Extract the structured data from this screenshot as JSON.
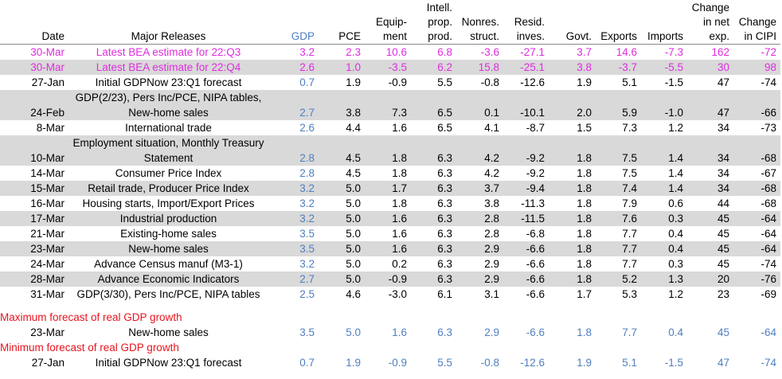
{
  "headers": [
    "Date",
    "Major Releases",
    "GDP",
    "PCE",
    "Equip-\nment",
    "Intell.\nprop.\nprod.",
    "Nonres.\nstruct.",
    "Resid.\ninves.",
    "Govt.",
    "Exports",
    "Imports",
    "Change\nin net\nexp.",
    "Change\nin CIPI"
  ],
  "colors": {
    "magenta": "#e02ce0",
    "blue": "#4f7fbf",
    "red": "#e8141e",
    "gray": "#d9d9d9"
  },
  "bea_rows": [
    [
      "30-Mar",
      "Latest BEA estimate for 22:Q3",
      "3.2",
      "2.3",
      "10.6",
      "6.8",
      "-3.6",
      "-27.1",
      "3.7",
      "14.6",
      "-7.3",
      "162",
      "-72"
    ],
    [
      "30-Mar",
      "Latest BEA estimate for 22:Q4",
      "2.6",
      "1.0",
      "-3.5",
      "6.2",
      "15.8",
      "-25.1",
      "3.8",
      "-3.7",
      "-5.5",
      "30",
      "98"
    ]
  ],
  "rows": [
    [
      "27-Jan",
      "Initial GDPNow 23:Q1 forecast",
      "0.7",
      "1.9",
      "-0.9",
      "5.5",
      "-0.8",
      "-12.6",
      "1.9",
      "5.1",
      "-1.5",
      "47",
      "-74"
    ],
    [
      "24-Feb",
      "GDP(2/23), Pers Inc/PCE, NIPA tables, New-home sales",
      "2.7",
      "3.8",
      "7.3",
      "6.5",
      "0.1",
      "-10.1",
      "2.0",
      "5.9",
      "-1.0",
      "47",
      "-66"
    ],
    [
      "8-Mar",
      "International trade",
      "2.6",
      "4.4",
      "1.6",
      "6.5",
      "4.1",
      "-8.7",
      "1.5",
      "7.3",
      "1.2",
      "34",
      "-73"
    ],
    [
      "10-Mar",
      "Employment situation, Monthly Treasury Statement",
      "2.8",
      "4.5",
      "1.8",
      "6.3",
      "4.2",
      "-9.2",
      "1.8",
      "7.5",
      "1.4",
      "34",
      "-68"
    ],
    [
      "14-Mar",
      "Consumer Price Index",
      "2.8",
      "4.5",
      "1.8",
      "6.3",
      "4.2",
      "-9.2",
      "1.8",
      "7.5",
      "1.4",
      "34",
      "-67"
    ],
    [
      "15-Mar",
      "Retail trade, Producer Price Index",
      "3.2",
      "5.0",
      "1.7",
      "6.3",
      "3.7",
      "-9.4",
      "1.8",
      "7.4",
      "1.4",
      "34",
      "-68"
    ],
    [
      "16-Mar",
      "Housing starts, Import/Export Prices",
      "3.2",
      "5.0",
      "1.8",
      "6.3",
      "3.8",
      "-11.3",
      "1.8",
      "7.9",
      "0.6",
      "44",
      "-68"
    ],
    [
      "17-Mar",
      "Industrial production",
      "3.2",
      "5.0",
      "1.6",
      "6.3",
      "2.8",
      "-11.5",
      "1.8",
      "7.6",
      "0.3",
      "45",
      "-64"
    ],
    [
      "21-Mar",
      "Existing-home sales",
      "3.5",
      "5.0",
      "1.6",
      "6.3",
      "2.8",
      "-6.8",
      "1.8",
      "7.7",
      "0.4",
      "45",
      "-64"
    ],
    [
      "23-Mar",
      "New-home sales",
      "3.5",
      "5.0",
      "1.6",
      "6.3",
      "2.9",
      "-6.6",
      "1.8",
      "7.7",
      "0.4",
      "45",
      "-64"
    ],
    [
      "24-Mar",
      "Advance Census manuf (M3-1)",
      "3.2",
      "5.0",
      "0.2",
      "6.3",
      "2.9",
      "-6.6",
      "1.8",
      "7.7",
      "0.3",
      "45",
      "-74"
    ],
    [
      "28-Mar",
      "Advance Economic Indicators",
      "2.7",
      "5.0",
      "-0.9",
      "6.3",
      "2.9",
      "-6.6",
      "1.8",
      "5.2",
      "1.3",
      "20",
      "-76"
    ],
    [
      "31-Mar",
      "GDP(3/30), Pers Inc/PCE, NIPA tables",
      "2.5",
      "4.6",
      "-3.0",
      "6.1",
      "3.1",
      "-6.6",
      "1.7",
      "5.3",
      "1.2",
      "23",
      "-69"
    ]
  ],
  "max_label": "Maximum forecast of real GDP growth",
  "max_row": [
    "23-Mar",
    "New-home sales",
    "3.5",
    "5.0",
    "1.6",
    "6.3",
    "2.9",
    "-6.6",
    "1.8",
    "7.7",
    "0.4",
    "45",
    "-64"
  ],
  "min_label": "Minimum forecast of real GDP growth",
  "min_row": [
    "27-Jan",
    "Initial GDPNow 23:Q1 forecast",
    "0.7",
    "1.9",
    "-0.9",
    "5.5",
    "-0.8",
    "-12.6",
    "1.9",
    "5.1",
    "-1.5",
    "47",
    "-74"
  ]
}
